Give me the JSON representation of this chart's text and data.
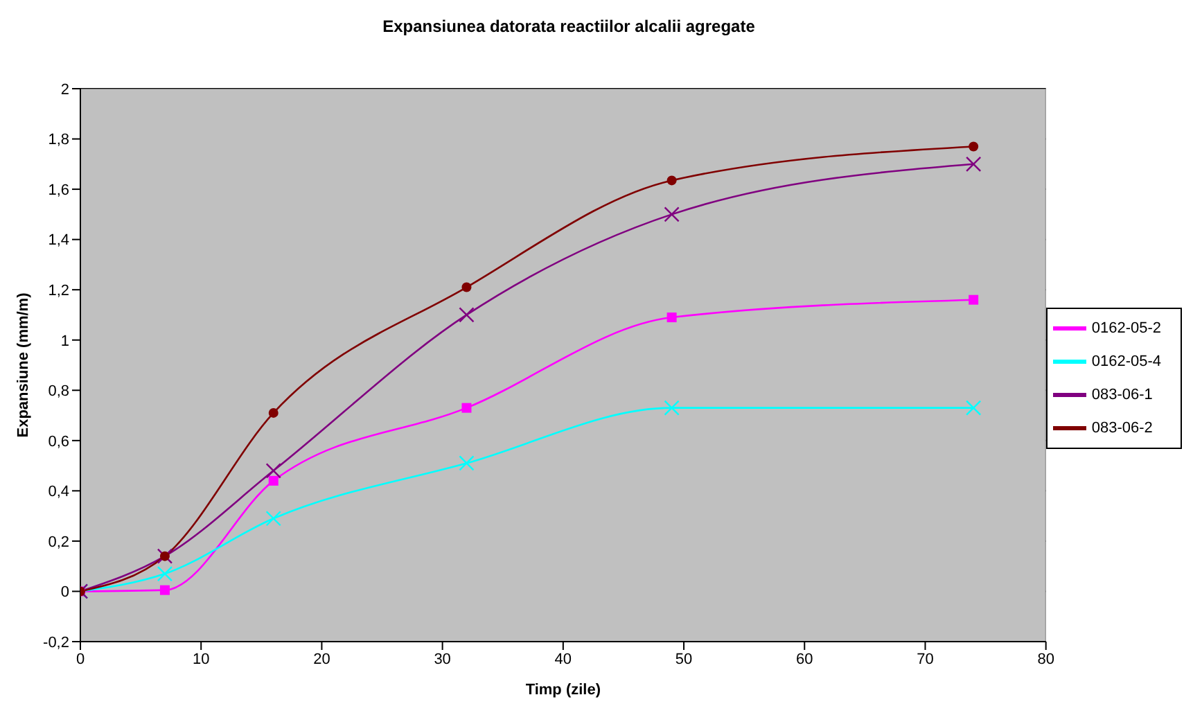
{
  "chart_data": {
    "type": "line",
    "title": "Expansiunea datorata reactiilor alcalii agregate",
    "xlabel": "Timp (zile)",
    "ylabel": "Expansiune (mm/m)",
    "x": [
      0,
      7,
      16,
      32,
      49,
      74
    ],
    "series": [
      {
        "name": "0162-05-2",
        "color": "#ff00ff",
        "marker": "square",
        "values": [
          0,
          0.005,
          0.44,
          0.73,
          1.09,
          1.16
        ]
      },
      {
        "name": "0162-05-4",
        "color": "#00ffff",
        "marker": "cross",
        "values": [
          0,
          0.07,
          0.29,
          0.51,
          0.73,
          0.73
        ]
      },
      {
        "name": "083-06-1",
        "color": "#800080",
        "marker": "cross",
        "values": [
          0,
          0.14,
          0.48,
          1.1,
          1.5,
          1.7
        ]
      },
      {
        "name": "083-06-2",
        "color": "#800000",
        "marker": "circle",
        "values": [
          0,
          0.14,
          0.71,
          1.21,
          1.635,
          1.77
        ]
      }
    ],
    "xlim": [
      0,
      80
    ],
    "xticks": [
      0,
      10,
      20,
      30,
      40,
      50,
      60,
      70,
      80
    ],
    "ylim": [
      -0.2,
      2
    ],
    "yticks": [
      {
        "value": -0.2,
        "label": "-0,2"
      },
      0,
      {
        "value": 0.2,
        "label": "0,2"
      },
      {
        "value": 0.4,
        "label": "0,4"
      },
      {
        "value": 0.6,
        "label": "0,6"
      },
      {
        "value": 0.8,
        "label": "0,8"
      },
      1,
      {
        "value": 1.2,
        "label": "1,2"
      },
      {
        "value": 1.4,
        "label": "1,4"
      },
      {
        "value": 1.6,
        "label": "1,6"
      },
      {
        "value": 1.8,
        "label": "1,8"
      },
      2
    ],
    "grid": "y",
    "legend": "right",
    "line_style": "solid"
  }
}
